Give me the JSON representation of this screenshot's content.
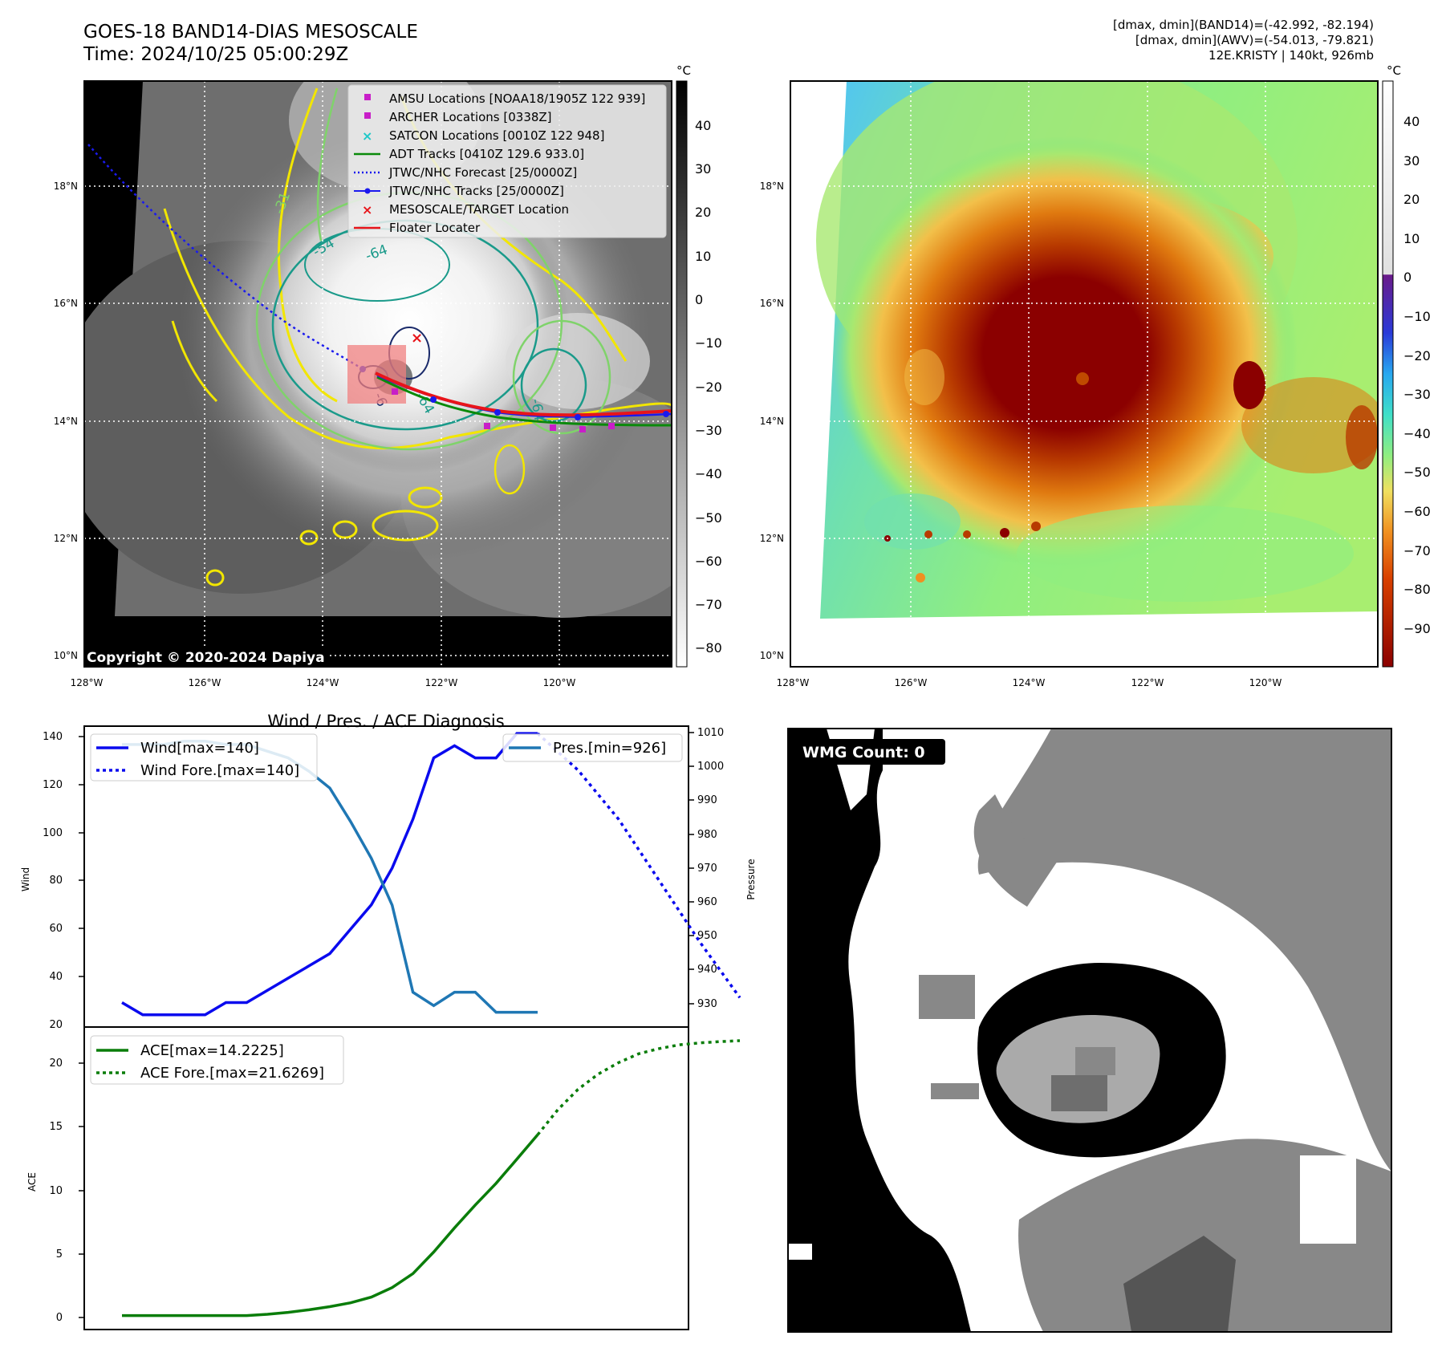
{
  "header": {
    "title_line1": "GOES-18 BAND14-DIAS MESOSCALE",
    "title_line2": "Time: 2024/10/25 05:00:29Z",
    "info_line1": "[dmax, dmin](BAND14)=(-42.992, -82.194)",
    "info_line2": "[dmax, dmin](AWV)=(-54.013, -79.821)",
    "info_line3": "12E.KRISTY | 140kt, 926mb"
  },
  "copyright": "Copyright © 2020-2024 Dapiya",
  "colors": {
    "wind": "#0a0aee",
    "pressure": "#1f77b4",
    "ace": "#0a7d0a",
    "floater": "#e8141a",
    "target_box": "#f08080",
    "contour_yellow": "#f2e600",
    "contour_lightgreen": "#7fd36a",
    "contour_teal": "#1a9a8a",
    "contour_navy": "#1a2a6a"
  },
  "map_left": {
    "cbar_unit": "°C",
    "cbar_ticks": [
      "40",
      "30",
      "20",
      "10",
      "0",
      "−10",
      "−20",
      "−30",
      "−40",
      "−50",
      "−60",
      "−70",
      "−80"
    ],
    "lat_labels": [
      "18°N",
      "16°N",
      "14°N",
      "12°N",
      "10°N"
    ],
    "lon_labels": [
      "128°W",
      "126°W",
      "124°W",
      "122°W",
      "120°W"
    ],
    "contour_labels": [
      "-31",
      "-54",
      "-64",
      "-64",
      "-64",
      "-31",
      "-6"
    ],
    "legend": [
      {
        "label": "AMSU Locations [NOAA18/1905Z 122 939]",
        "icon": "square-magenta",
        "color": "#c81ec8"
      },
      {
        "label": "ARCHER Locations [0338Z]",
        "icon": "square-magenta",
        "color": "#c81ec8"
      },
      {
        "label": "SATCON Locations [0010Z 122 948]",
        "icon": "x-cyan",
        "color": "#1ec8c8"
      },
      {
        "label": "ADT Tracks [0410Z 129.6 933.0]",
        "icon": "line-green",
        "color": "#0a8a0a"
      },
      {
        "label": "JTWC/NHC Forecast [25/0000Z]",
        "icon": "dotted-blue",
        "color": "#1a1aee"
      },
      {
        "label": "JTWC/NHC Tracks [25/0000Z]",
        "icon": "line-dot-blue",
        "color": "#1a1aee"
      },
      {
        "label": "MESOSCALE/TARGET Location",
        "icon": "x-red",
        "color": "#e8141a"
      },
      {
        "label": "Floater Locater",
        "icon": "line-red",
        "color": "#e8141a"
      }
    ]
  },
  "map_right": {
    "cbar_unit": "°C",
    "cbar_ticks": [
      "40",
      "30",
      "20",
      "10",
      "0",
      "−10",
      "−20",
      "−30",
      "−40",
      "−50",
      "−60",
      "−70",
      "−80",
      "−90"
    ],
    "lat_labels": [
      "18°N",
      "16°N",
      "14°N",
      "12°N",
      "10°N"
    ],
    "lon_labels": [
      "128°W",
      "126°W",
      "124°W",
      "122°W",
      "120°W"
    ]
  },
  "chart_data": [
    {
      "type": "line",
      "title": "Wind / Pres. / ACE Diagnosis",
      "ylabel": "Wind",
      "ylabel_right": "Pressure",
      "ylim": [
        20,
        143
      ],
      "ylim_right": [
        921.6,
        1011.5
      ],
      "yticks": [
        "140",
        "120",
        "100",
        "80",
        "60",
        "40",
        "20"
      ],
      "yticks_right": [
        "1010",
        "1000",
        "990",
        "980",
        "970",
        "960",
        "950",
        "940",
        "930"
      ],
      "x_range": [
        0,
        30
      ],
      "series": [
        {
          "name": "Wind[max=140]",
          "style": "solid",
          "axis": "left",
          "x": [
            0,
            1,
            2,
            3,
            4,
            5,
            6,
            7,
            8,
            9,
            10,
            11,
            12,
            13,
            14,
            15,
            16,
            17,
            18,
            19,
            20
          ],
          "values": [
            30,
            25,
            25,
            25,
            25,
            30,
            30,
            35,
            40,
            45,
            50,
            60,
            70,
            85,
            105,
            130,
            135,
            130,
            130,
            140,
            140
          ]
        },
        {
          "name": "Wind Fore.[max=140]",
          "style": "dotted",
          "axis": "left",
          "x": [
            20,
            22,
            24,
            26,
            28,
            30
          ],
          "values": [
            140,
            125,
            105,
            80,
            55,
            32
          ]
        },
        {
          "name": "Pres.[min=926]",
          "style": "solid",
          "axis": "right",
          "x": [
            0,
            1,
            2,
            3,
            4,
            5,
            6,
            7,
            8,
            9,
            10,
            11,
            12,
            13,
            14,
            15,
            16,
            17,
            18,
            19,
            20
          ],
          "values": [
            1006,
            1006,
            1006,
            1007,
            1007,
            1006,
            1006,
            1004,
            1002,
            998,
            993,
            983,
            972,
            958,
            932,
            928,
            932,
            932,
            926,
            926,
            926
          ]
        }
      ]
    },
    {
      "type": "line",
      "ylabel": "ACE",
      "ylim": [
        -1.1,
        22.7
      ],
      "yticks": [
        "20",
        "15",
        "10",
        "5",
        "0"
      ],
      "x_range": [
        0,
        30
      ],
      "series": [
        {
          "name": "ACE[max=14.2225]",
          "style": "solid",
          "x": [
            0,
            1,
            2,
            3,
            4,
            5,
            6,
            7,
            8,
            9,
            10,
            11,
            12,
            13,
            14,
            15,
            16,
            17,
            18,
            19,
            20
          ],
          "values": [
            0,
            0,
            0,
            0,
            0,
            0,
            0,
            0.1,
            0.25,
            0.45,
            0.7,
            1.0,
            1.45,
            2.2,
            3.3,
            5.0,
            6.9,
            8.7,
            10.4,
            12.3,
            14.2225
          ]
        },
        {
          "name": "ACE Fore.[max=21.6269]",
          "style": "dotted",
          "x": [
            20,
            21,
            22,
            23,
            24,
            25,
            26,
            27,
            28,
            29,
            30
          ],
          "values": [
            14.2225,
            16.2,
            17.8,
            19.0,
            19.9,
            20.6,
            21.0,
            21.3,
            21.45,
            21.55,
            21.6269
          ]
        }
      ]
    }
  ],
  "wmg": {
    "label": "WMG Count: 0"
  }
}
